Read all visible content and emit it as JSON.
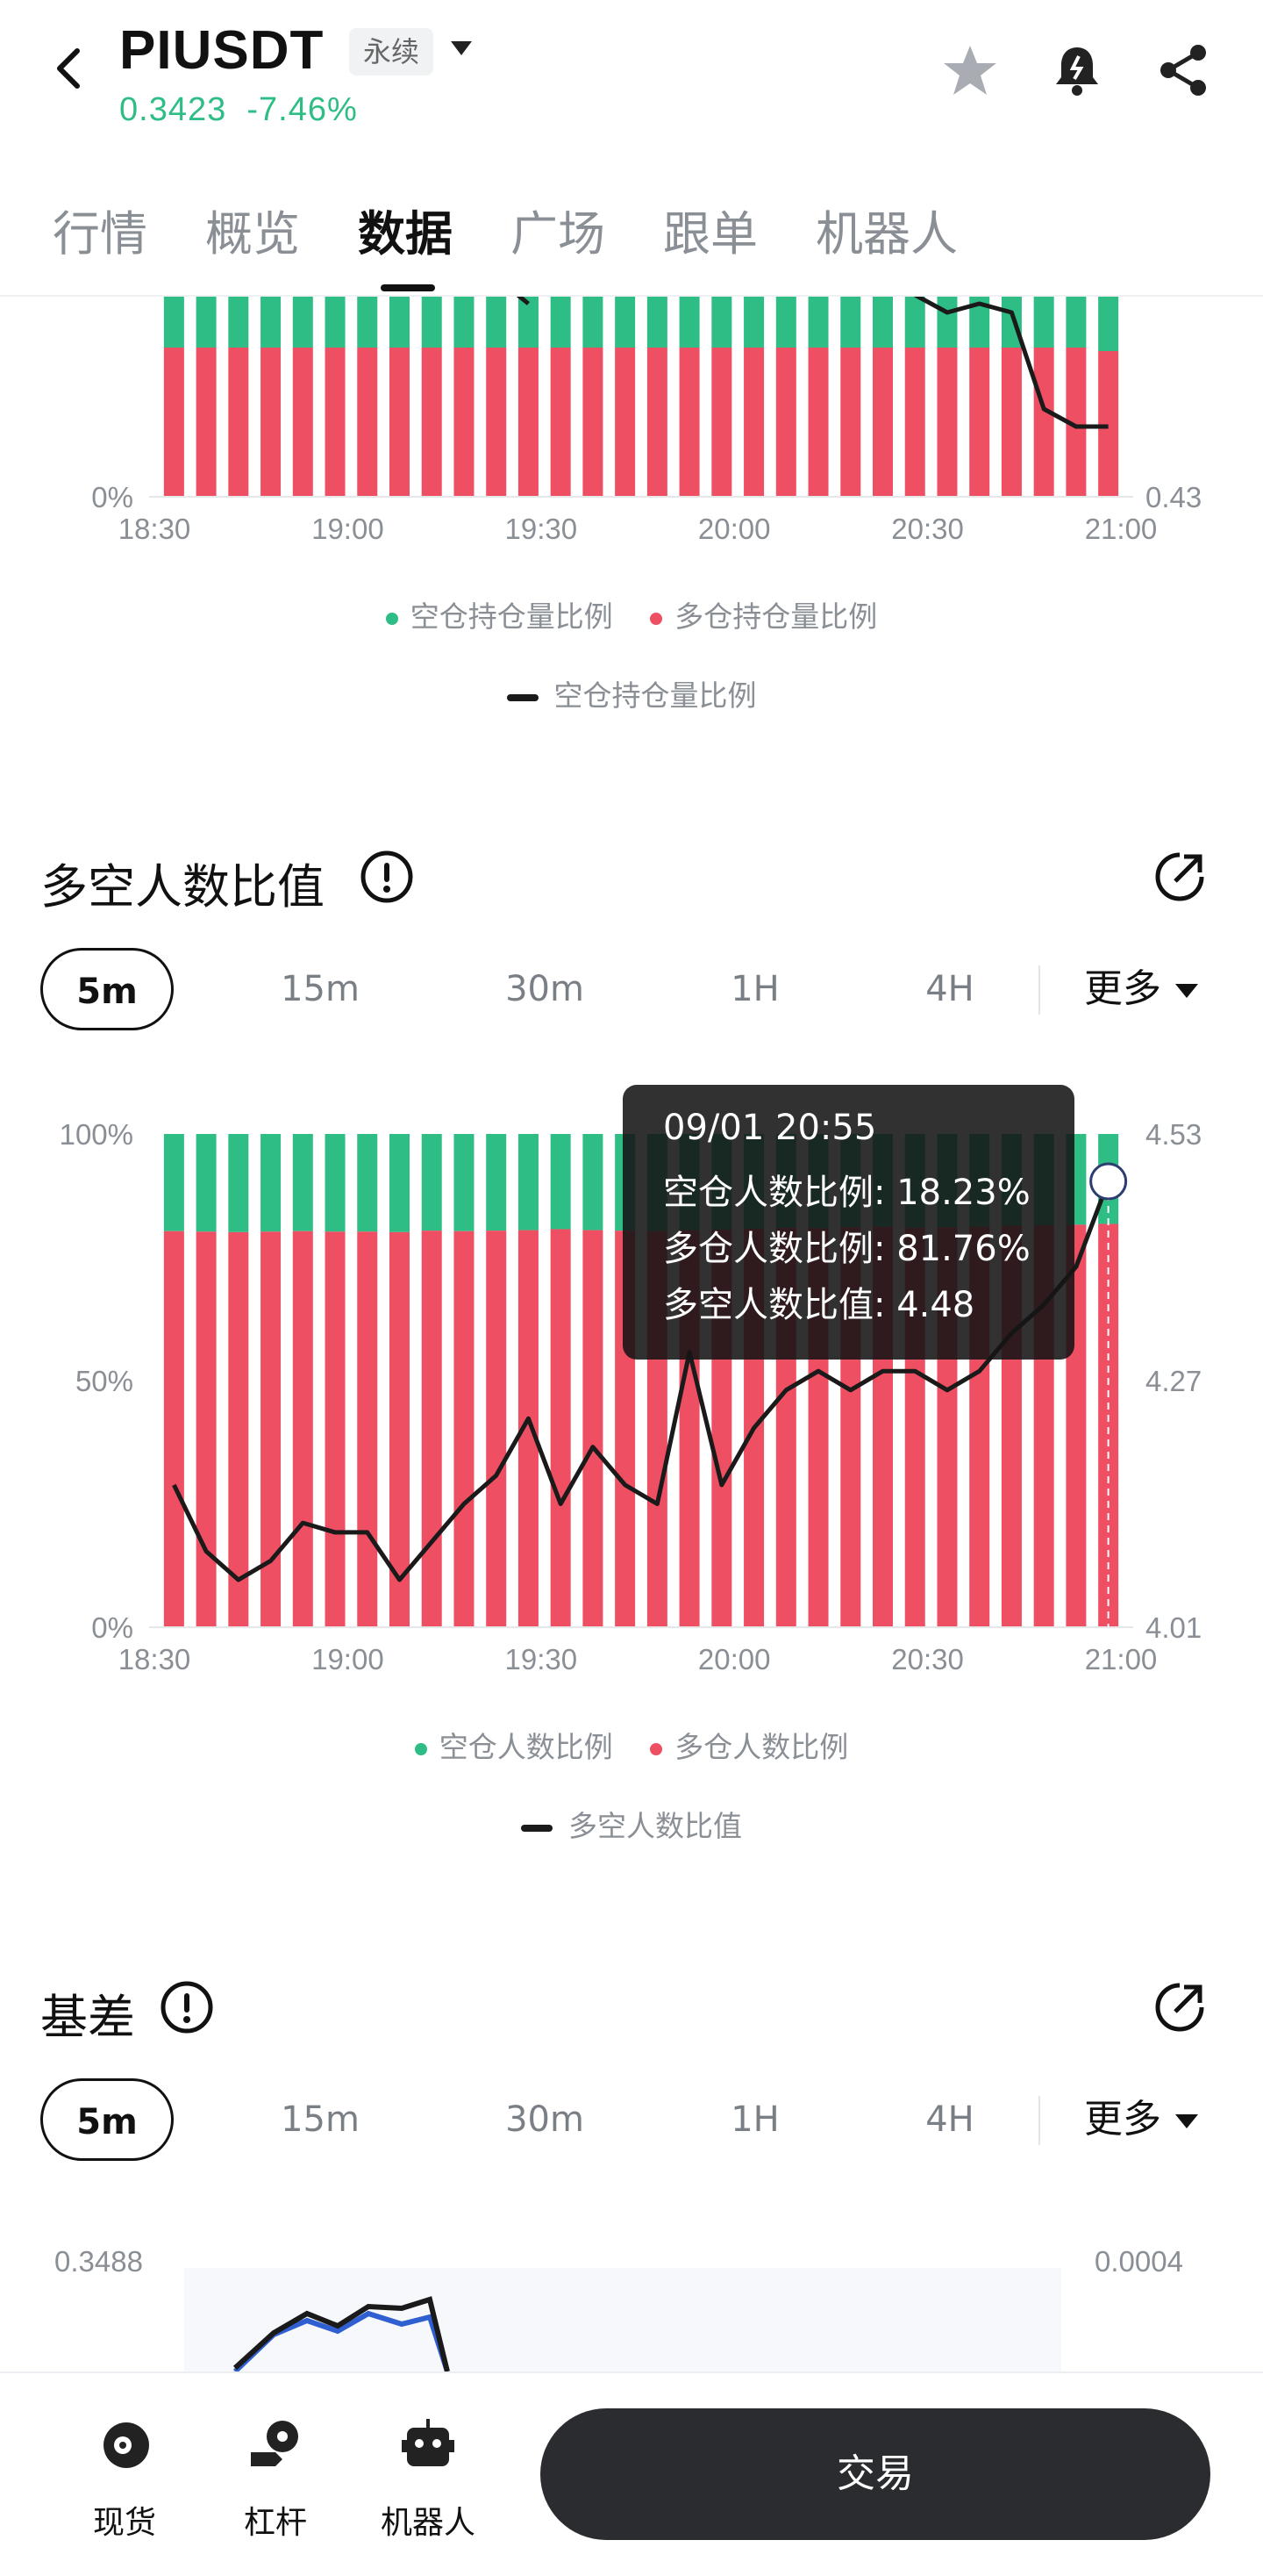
{
  "header": {
    "symbol": "PIUSDT",
    "contract_type": "永续",
    "last_price": "0.3423",
    "change_pct": "-7.46%",
    "icons": [
      "back-arrow-icon",
      "star-icon",
      "bell-icon",
      "share-icon"
    ]
  },
  "tabs": [
    {
      "label": "行情",
      "active": false
    },
    {
      "label": "概览",
      "active": false
    },
    {
      "label": "数据",
      "active": true
    },
    {
      "label": "广场",
      "active": false
    },
    {
      "label": "跟单",
      "active": false
    },
    {
      "label": "机器人",
      "active": false
    }
  ],
  "colors": {
    "long": "#ef4f62",
    "short": "#2ebd85",
    "line": "#1a1a1a",
    "accent_up": "#2ebd85"
  },
  "chart1": {
    "left_axis_label": "0%",
    "right_axis_label": "0.43",
    "legend": {
      "short": "空仓持仓量比例",
      "long": "多仓持仓量比例",
      "line": "空仓持仓量比例"
    }
  },
  "section2": {
    "title": "多空人数比值",
    "periods": [
      "5m",
      "15m",
      "30m",
      "1H",
      "4H"
    ],
    "active_period": "5m",
    "more_label": "更多",
    "legend": {
      "short": "空仓人数比例",
      "long": "多仓人数比例",
      "line": "多空人数比值"
    },
    "tooltip": {
      "time": "09/01 20:55",
      "short": "空仓人数比例: 18.23%",
      "long": "多仓人数比例: 81.76%",
      "ratio": "多空人数比值: 4.48"
    }
  },
  "section3": {
    "title": "基差",
    "periods": [
      "5m",
      "15m",
      "30m",
      "1H",
      "4H"
    ],
    "active_period": "5m",
    "more_label": "更多",
    "left_axis_top": "0.3488",
    "right_axis_top": "0.0004"
  },
  "bottom_nav": {
    "items": [
      {
        "label": "现货",
        "icon": "spot-coin-icon"
      },
      {
        "label": "杠杆",
        "icon": "margin-icon"
      },
      {
        "label": "机器人",
        "icon": "robot-icon"
      }
    ],
    "trade_label": "交易"
  },
  "chart_data": [
    {
      "type": "bar",
      "title": "",
      "x_ticks": [
        "18:30",
        "19:00",
        "19:30",
        "20:00",
        "20:30",
        "21:00"
      ],
      "left_ticks": [
        "0%"
      ],
      "right_ticks": [
        "0.43"
      ],
      "series": [
        {
          "name": "空仓持仓量比例",
          "values": [
            10,
            10,
            10,
            10,
            10,
            10,
            10,
            10,
            10,
            10,
            10,
            10,
            10,
            10,
            10,
            10,
            10,
            10,
            10,
            10,
            10,
            10,
            10,
            10,
            10,
            10,
            10,
            10,
            10,
            11
          ]
        },
        {
          "name": "多仓持仓量比例",
          "values": [
            90,
            90,
            90,
            90,
            90,
            90,
            90,
            90,
            90,
            90,
            90,
            90,
            90,
            90,
            90,
            90,
            90,
            90,
            90,
            90,
            90,
            90,
            90,
            90,
            90,
            90,
            90,
            90,
            90,
            89
          ]
        }
      ],
      "line_series": {
        "name": "空仓持仓量比例",
        "x_index": [
          10,
          11,
          23,
          24,
          25,
          26,
          27,
          28,
          29
        ],
        "values": [
          0.455,
          0.452,
          0.453,
          0.451,
          0.452,
          0.451,
          0.44,
          0.438,
          0.438
        ]
      }
    },
    {
      "type": "bar",
      "title": "多空人数比值",
      "x_ticks": [
        "18:30",
        "19:00",
        "19:30",
        "20:00",
        "20:30",
        "21:00"
      ],
      "left_ticks": [
        "0%",
        "50%",
        "100%"
      ],
      "right_ticks": [
        "4.01",
        "4.27",
        "4.53"
      ],
      "ylim_right": [
        4.01,
        4.53
      ],
      "series": [
        {
          "name": "空仓人数比例",
          "values": [
            19.7,
            19.8,
            19.9,
            19.8,
            19.7,
            19.8,
            19.8,
            19.9,
            19.6,
            19.7,
            19.6,
            19.5,
            19.3,
            19.5,
            19.6,
            19.7,
            19.5,
            19.4,
            19.2,
            19.0,
            19.1,
            18.9,
            18.8,
            19.0,
            18.9,
            18.8,
            18.6,
            18.5,
            18.4,
            18.23
          ]
        },
        {
          "name": "多仓人数比例",
          "values": [
            80.3,
            80.2,
            80.1,
            80.2,
            80.3,
            80.2,
            80.2,
            80.1,
            80.4,
            80.3,
            80.4,
            80.5,
            80.7,
            80.5,
            80.4,
            80.3,
            80.5,
            80.6,
            80.8,
            81.0,
            80.9,
            81.1,
            81.2,
            81.0,
            81.1,
            81.2,
            81.4,
            81.5,
            81.6,
            81.76
          ]
        }
      ],
      "line_series": {
        "name": "多空人数比值",
        "values": [
          4.16,
          4.09,
          4.06,
          4.08,
          4.12,
          4.11,
          4.11,
          4.06,
          4.1,
          4.14,
          4.17,
          4.23,
          4.14,
          4.2,
          4.16,
          4.14,
          4.3,
          4.16,
          4.22,
          4.26,
          4.28,
          4.26,
          4.28,
          4.28,
          4.26,
          4.28,
          4.32,
          4.35,
          4.39,
          4.48
        ]
      },
      "tooltip_index": 29
    }
  ]
}
